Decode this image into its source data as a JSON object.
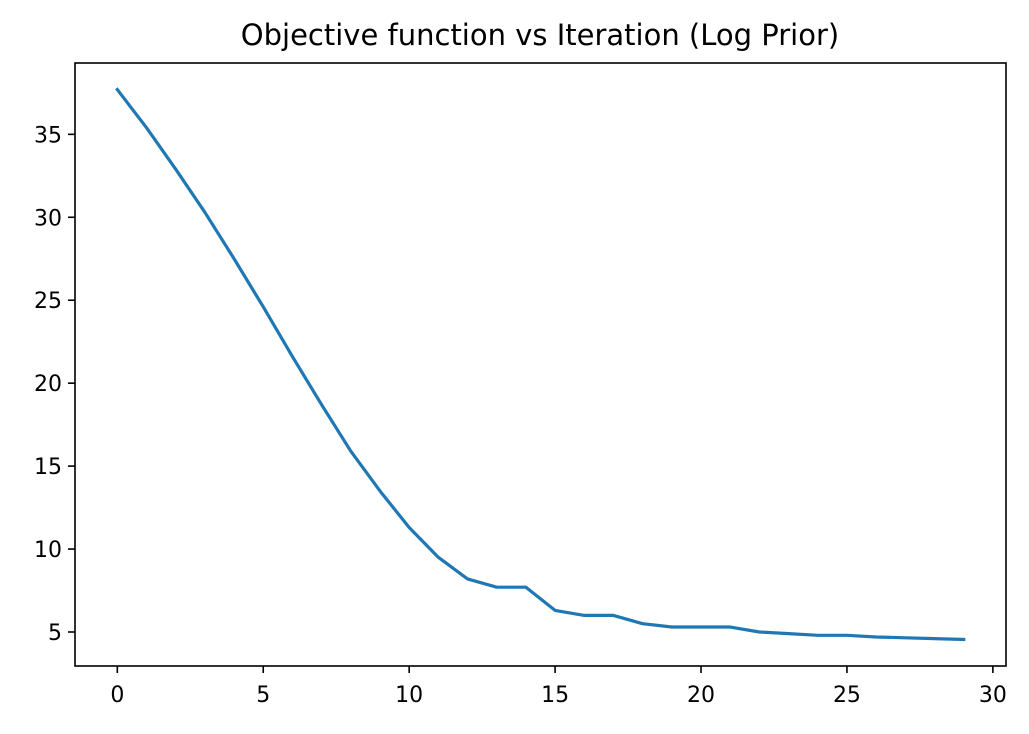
{
  "chart_data": {
    "type": "line",
    "title": "Objective function vs Iteration (Log Prior)",
    "xlabel": "",
    "ylabel": "",
    "xlim": [
      -1.45,
      30.45
    ],
    "ylim": [
      2.95,
      39.3
    ],
    "xticks": [
      0,
      5,
      10,
      15,
      20,
      25,
      30
    ],
    "yticks": [
      5,
      10,
      15,
      20,
      25,
      30,
      35
    ],
    "grid": false,
    "series": [
      {
        "color": "#1f77b4",
        "x": [
          0,
          1,
          2,
          3,
          4,
          5,
          6,
          7,
          8,
          9,
          10,
          11,
          12,
          13,
          14,
          15,
          16,
          17,
          18,
          19,
          20,
          21,
          22,
          23,
          24,
          25,
          26,
          27,
          28,
          29
        ],
        "y": [
          37.7,
          35.4,
          32.9,
          30.3,
          27.5,
          24.6,
          21.6,
          18.7,
          15.9,
          13.5,
          11.3,
          9.5,
          8.2,
          7.7,
          7.7,
          6.3,
          6.0,
          6.0,
          5.5,
          5.3,
          5.3,
          5.3,
          5.0,
          4.9,
          4.8,
          4.8,
          4.7,
          4.65,
          4.6,
          4.55
        ]
      }
    ]
  }
}
